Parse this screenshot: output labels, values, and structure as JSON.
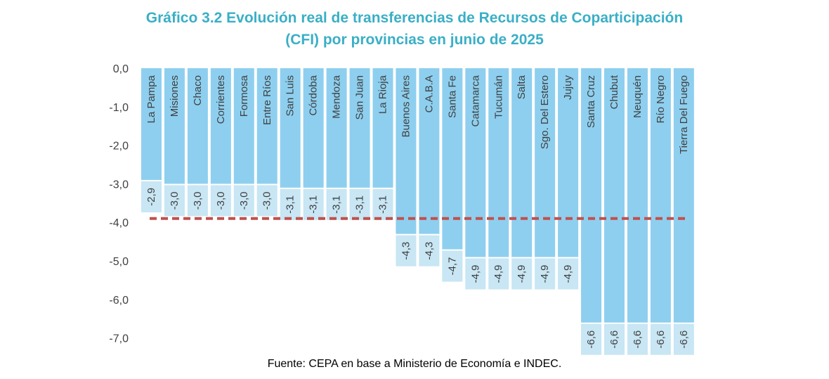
{
  "chart_data": {
    "type": "bar",
    "title": "Gráfico 3.2 Evolución real de transferencias de Recursos de Coparticipación (CFI) por provincias en junio de 2025",
    "title_lines": [
      "Gráfico 3.2 Evolución real de transferencias de Recursos de Coparticipación",
      "(CFI) por provincias en junio de 2025"
    ],
    "xlabel": "",
    "ylabel": "",
    "ylim": [
      -7.0,
      0.0
    ],
    "yticks": [
      "0,0",
      "-1,0",
      "-2,0",
      "-3,0",
      "-4,0",
      "-5,0",
      "-6,0",
      "-7,0"
    ],
    "ytick_values": [
      0,
      -1,
      -2,
      -3,
      -4,
      -5,
      -6,
      -7
    ],
    "categories": [
      "La Pampa",
      "Misiones",
      "Chaco",
      "Corrientes",
      "Formosa",
      "Entre Ríos",
      "San Luis",
      "Córdoba",
      "Mendoza",
      "San Juan",
      "La Rioja",
      "Buenos Aires",
      "C.A.B.A",
      "Santa Fe",
      "Catamarca",
      "Tucumán",
      "Salta",
      "Sgo. Del Estero",
      "Jujuy",
      "Santa Cruz",
      "Chubut",
      "Neuquén",
      "Río Negro",
      "Tierra Del Fuego"
    ],
    "values": [
      -2.9,
      -3.0,
      -3.0,
      -3.0,
      -3.0,
      -3.0,
      -3.1,
      -3.1,
      -3.1,
      -3.1,
      -3.1,
      -4.3,
      -4.3,
      -4.7,
      -4.9,
      -4.9,
      -4.9,
      -4.9,
      -4.9,
      -6.6,
      -6.6,
      -6.6,
      -6.6,
      -6.6
    ],
    "value_labels": [
      "-2,9",
      "-3,0",
      "-3,0",
      "-3,0",
      "-3,0",
      "-3,0",
      "-3,1",
      "-3,1",
      "-3,1",
      "-3,1",
      "-3,1",
      "-4,3",
      "-4,3",
      "-4,7",
      "-4,9",
      "-4,9",
      "-4,9",
      "-4,9",
      "-4,9",
      "-6,6",
      "-6,6",
      "-6,6",
      "-6,6",
      "-6,6"
    ],
    "reference_line": -3.9,
    "grid": false,
    "legend": "none",
    "colors": {
      "bar": "#8ECFEF",
      "label_box": "#C8E6F4",
      "reference_line": "#C0504D",
      "title": "#3AAFC6",
      "axis_text": "#404040"
    }
  },
  "source": "Fuente: CEPA en base a Ministerio de Economía e INDEC."
}
